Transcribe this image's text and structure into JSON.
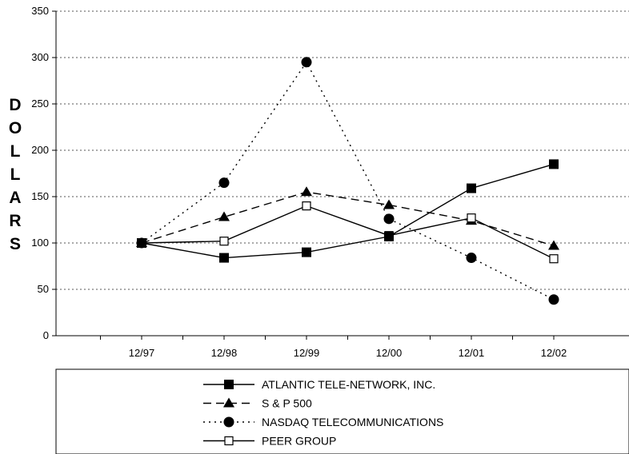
{
  "chart_data": {
    "type": "line",
    "title": "",
    "xlabel": "",
    "ylabel": "DOLLARS",
    "categories": [
      "12/97",
      "12/98",
      "12/99",
      "12/00",
      "12/01",
      "12/02"
    ],
    "ylim": [
      0,
      350
    ],
    "yticks": [
      "0",
      "50",
      "100",
      "150",
      "200",
      "250",
      "300",
      "350"
    ],
    "grid": "horizontal-dotted",
    "legend_position": "bottom",
    "series": [
      {
        "name": "ATLANTIC TELE-NETWORK, INC.",
        "values": [
          100,
          84,
          90,
          107,
          159,
          185
        ],
        "line": "solid",
        "marker": "filled-square"
      },
      {
        "name": "S & P 500",
        "values": [
          100,
          128,
          155,
          141,
          124,
          97
        ],
        "line": "dashed",
        "marker": "filled-triangle"
      },
      {
        "name": "NASDAQ TELECOMMUNICATIONS",
        "values": [
          100,
          165,
          295,
          126,
          84,
          39
        ],
        "line": "dotted",
        "marker": "filled-circle"
      },
      {
        "name": "PEER GROUP",
        "values": [
          100,
          102,
          140,
          108,
          127,
          83
        ],
        "line": "solid",
        "marker": "open-square"
      }
    ]
  }
}
